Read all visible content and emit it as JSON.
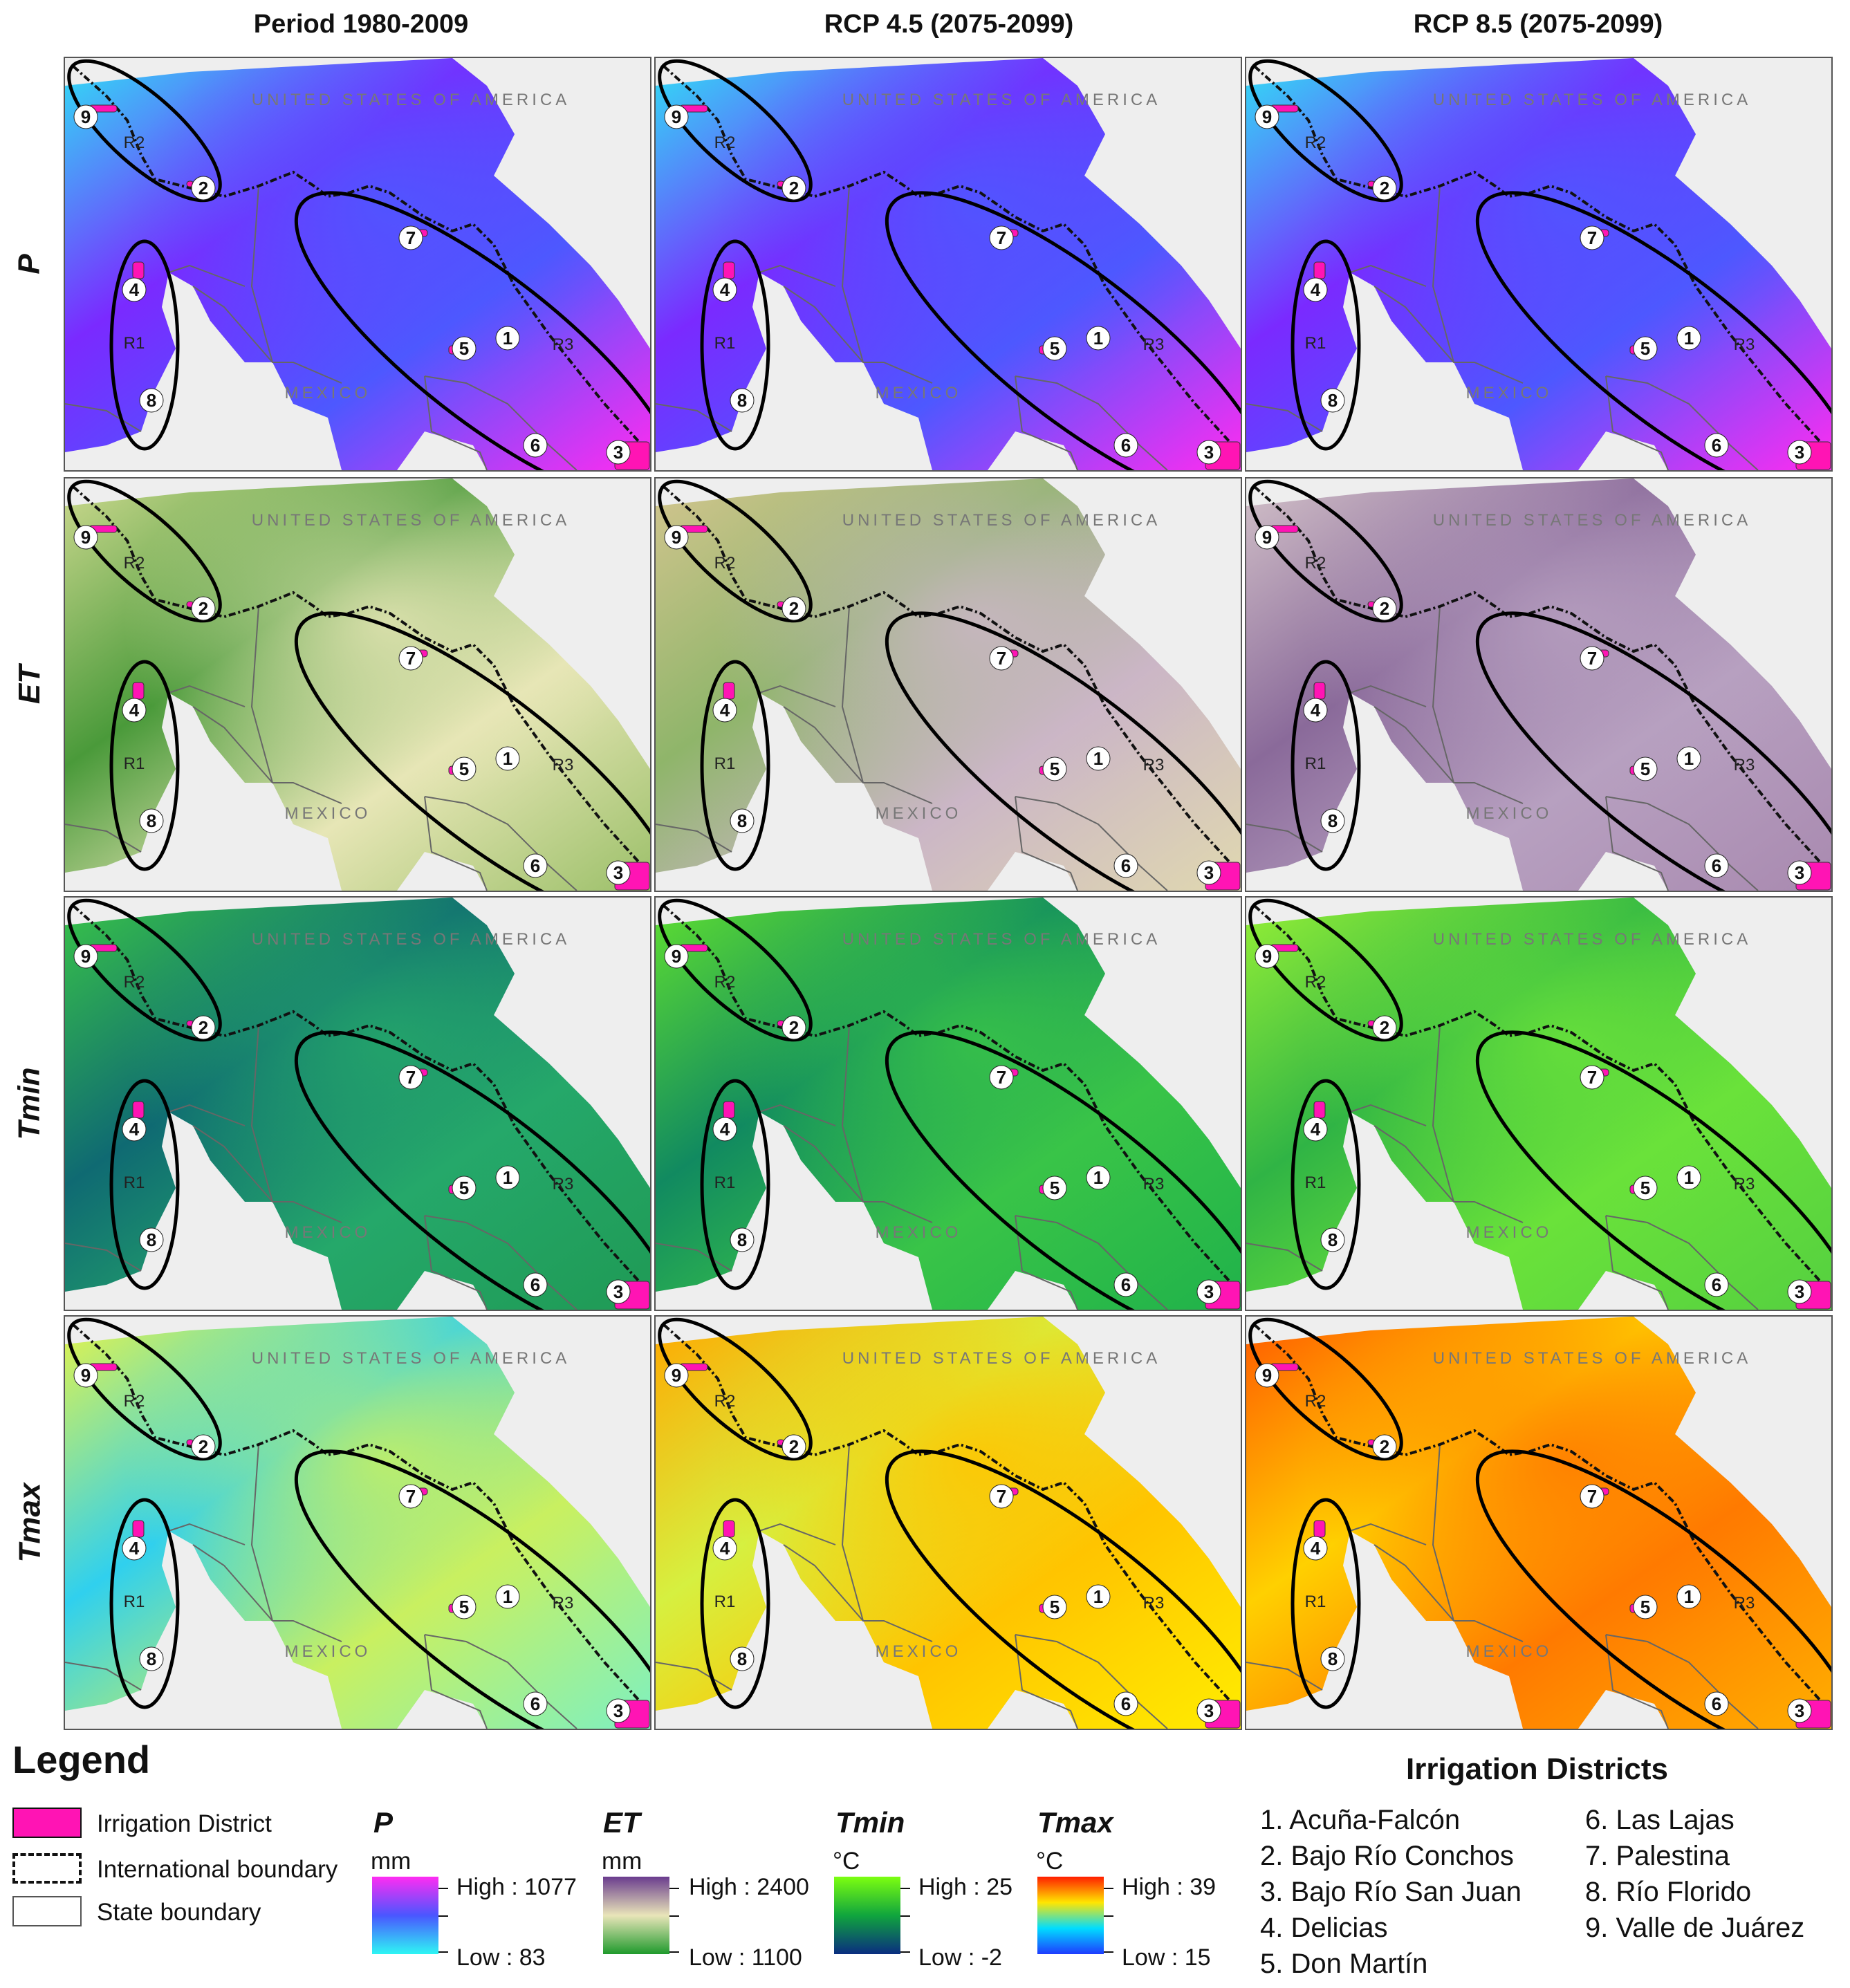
{
  "columns": [
    "Period 1980-2009",
    "RCP 4.5 (2075-2099)",
    "RCP 8.5 (2075-2099)"
  ],
  "rows": [
    "P",
    "ET",
    "Tmin",
    "Tmax"
  ],
  "map_labels": {
    "country_top": "UNITED STATES OF AMERICA",
    "country_bottom": "MEXICO",
    "regions": [
      "R1",
      "R2",
      "R3"
    ],
    "districts": [
      "1",
      "2",
      "3",
      "4",
      "5",
      "6",
      "7",
      "8",
      "9"
    ]
  },
  "legend": {
    "title": "Legend",
    "symbols": [
      {
        "label": "Irrigation District",
        "color": "#ff14b4"
      },
      {
        "label": "International boundary"
      },
      {
        "label": "State boundary"
      }
    ],
    "variables": [
      {
        "name": "P",
        "unit": "mm",
        "high": "High : 1077",
        "low": "Low : 83",
        "colors": [
          "#ff2cf2",
          "#4a56ff",
          "#2ef6f4"
        ]
      },
      {
        "name": "ET",
        "unit": "mm",
        "high": "High : 2400",
        "low": "Low : 1100",
        "colors": [
          "#6a3c8e",
          "#e9e5b9",
          "#1f9a2c"
        ]
      },
      {
        "name": "Tmin",
        "unit": "°C",
        "high": "High : 25",
        "low": "Low : -2",
        "colors": [
          "#7cff10",
          "#10a53d",
          "#0a2d80"
        ]
      },
      {
        "name": "Tmax",
        "unit": "°C",
        "high": "High : 39",
        "low": "Low : 15",
        "colors": [
          "#ff1e00",
          "#ffe600",
          "#00ddff",
          "#1e3cff"
        ]
      }
    ]
  },
  "irrigation_districts": {
    "title": "Irrigation Districts",
    "items": [
      "1. Acuña-Falcón",
      "2. Bajo Río Conchos",
      "3. Bajo Río San Juan",
      "4. Delicias",
      "5. Don Martín",
      "6. Las Lajas",
      "7. Palestina",
      "8. Río Florido",
      "9. Valle de Juárez"
    ]
  },
  "panel_colors": {
    "P": [
      [
        "#ff2cf0",
        "#4d58ff",
        "#7a2aff",
        "#30e0f5"
      ],
      [
        "#ff2cf0",
        "#4d58ff",
        "#7a2aff",
        "#30e0f5"
      ],
      [
        "#ff2cf0",
        "#4d58ff",
        "#7a2aff",
        "#30e0f5"
      ]
    ],
    "ET": [
      [
        "#9cc06a",
        "#e7e6b6",
        "#4a9a3a",
        "#cdd98f"
      ],
      [
        "#e0d8b0",
        "#cbb6c6",
        "#8fb56a",
        "#d3c58f"
      ],
      [
        "#a98ab0",
        "#b7a0c0",
        "#8a6a9a",
        "#d2c1c8"
      ]
    ],
    "Tmin": [
      [
        "#1f9a55",
        "#25a86a",
        "#0f6a72",
        "#39c448"
      ],
      [
        "#20b24a",
        "#39c448",
        "#118a60",
        "#60e030"
      ],
      [
        "#55d040",
        "#6ae23a",
        "#30b445",
        "#96f036"
      ]
    ],
    "Tmax": [
      [
        "#7ef0c0",
        "#c9f060",
        "#30d0ee",
        "#e6f44a"
      ],
      [
        "#ffec00",
        "#ffc400",
        "#d6f040",
        "#ffa800"
      ],
      [
        "#ffae00",
        "#ff7a00",
        "#ffd000",
        "#ff5a00"
      ]
    ]
  }
}
